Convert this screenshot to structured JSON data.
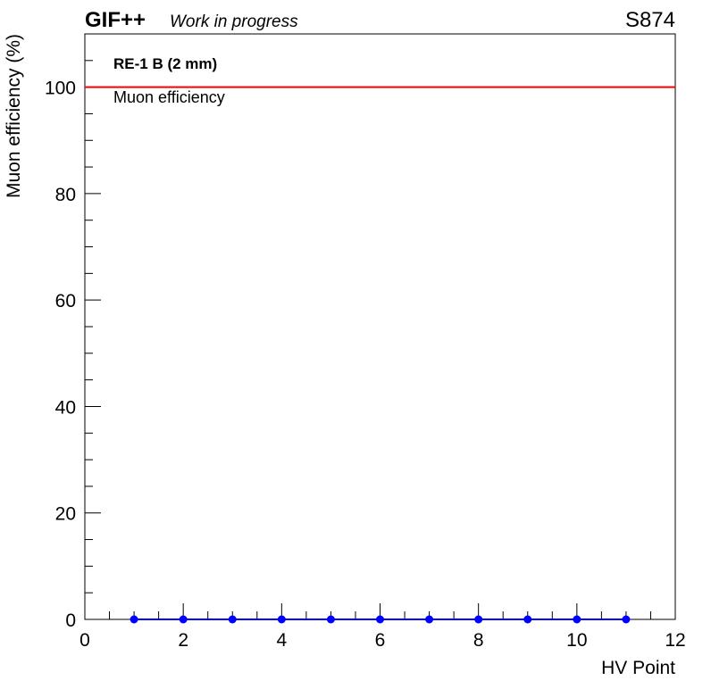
{
  "header": {
    "experiment": "GIF++",
    "status": "Work in progress",
    "run_id": "S874"
  },
  "chart_data": {
    "type": "line",
    "title": "",
    "xlabel": "HV Point",
    "ylabel": "Muon efficiency (%)",
    "xlim": [
      0,
      12
    ],
    "ylim": [
      0,
      110
    ],
    "x_ticks": [
      "0",
      "2",
      "4",
      "6",
      "8",
      "10",
      "12"
    ],
    "y_ticks": [
      "0",
      "20",
      "40",
      "60",
      "80",
      "100"
    ],
    "grid": false,
    "series": [
      {
        "name": "Muon efficiency",
        "color": "#0000ff",
        "marker": "circle",
        "x": [
          1,
          2,
          3,
          4,
          5,
          6,
          7,
          8,
          9,
          10,
          11
        ],
        "y": [
          0,
          0,
          0,
          0,
          0,
          0,
          0,
          0,
          0,
          0,
          0
        ]
      }
    ],
    "reference_line": {
      "y": 100,
      "color": "#ff0000",
      "label": "Muon efficiency"
    },
    "annotations": [
      "RE-1 B (2 mm)"
    ]
  }
}
